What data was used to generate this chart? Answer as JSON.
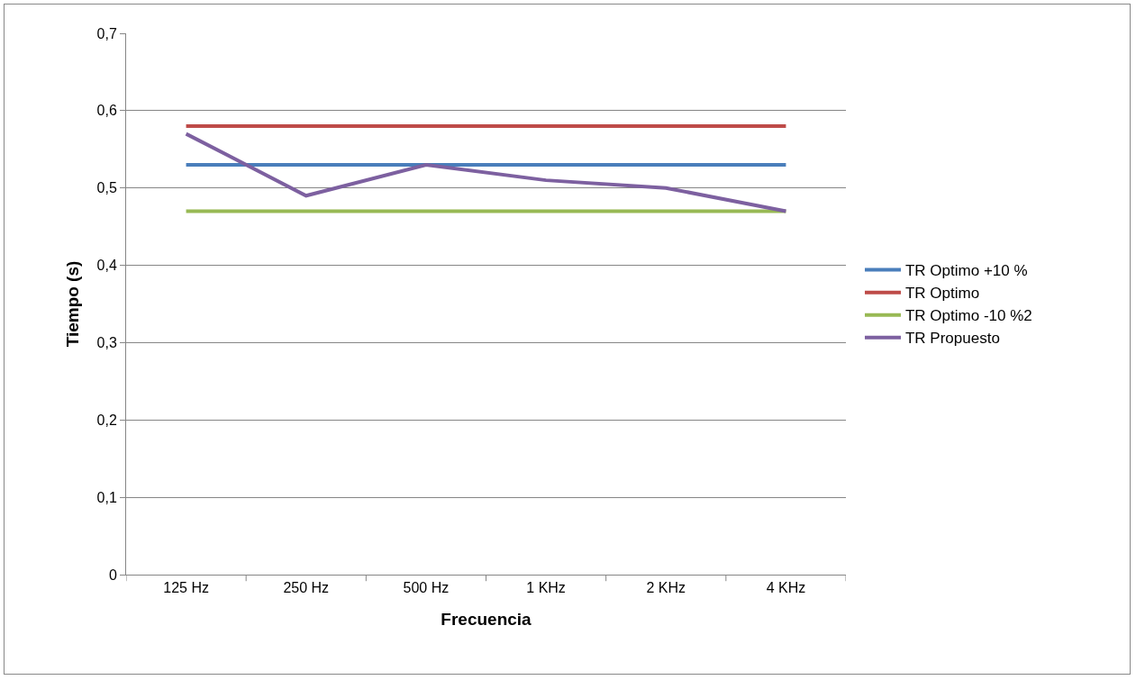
{
  "chart_data": {
    "type": "line",
    "xlabel": "Frecuencia",
    "ylabel": "Tiempo (s)",
    "categories": [
      "125 Hz",
      "250 Hz",
      "500 Hz",
      "1 KHz",
      "2 KHz",
      "4 KHz"
    ],
    "series": [
      {
        "name": "TR Optimo +10 %",
        "color": "#4a7ebb",
        "values": [
          0.53,
          0.53,
          0.53,
          0.53,
          0.53,
          0.53
        ]
      },
      {
        "name": "TR Optimo",
        "color": "#be4b48",
        "values": [
          0.58,
          0.58,
          0.58,
          0.58,
          0.58,
          0.58
        ]
      },
      {
        "name": "TR Optimo -10 %2",
        "color": "#98b954",
        "values": [
          0.47,
          0.47,
          0.47,
          0.47,
          0.47,
          0.47
        ]
      },
      {
        "name": "TR Propuesto",
        "color": "#7d60a0",
        "values": [
          0.57,
          0.49,
          0.53,
          0.51,
          0.5,
          0.47
        ]
      }
    ],
    "ylim": [
      0,
      0.7
    ],
    "yticks": [
      {
        "value": 0,
        "label": "0"
      },
      {
        "value": 0.1,
        "label": "0,1"
      },
      {
        "value": 0.2,
        "label": "0,2"
      },
      {
        "value": 0.3,
        "label": "0,3"
      },
      {
        "value": 0.4,
        "label": "0,4"
      },
      {
        "value": 0.5,
        "label": "0,5"
      },
      {
        "value": 0.6,
        "label": "0,6"
      },
      {
        "value": 0.7,
        "label": "0,7"
      }
    ],
    "grid": "y",
    "legend": "right",
    "marker": "none",
    "line_style": "solid"
  }
}
